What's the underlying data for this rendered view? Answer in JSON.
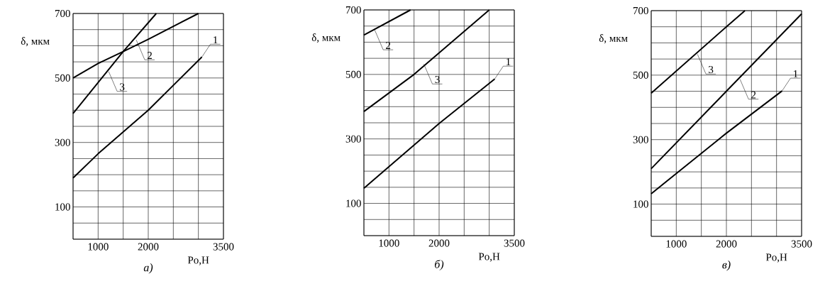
{
  "chart_data": [
    {
      "type": "line",
      "title": "а)",
      "xlabel": "Po,H",
      "ylabel": "δ, мкм",
      "xlim": [
        500,
        3500
      ],
      "ylim": [
        0,
        700
      ],
      "grid": true,
      "xticks": [
        {
          "value": 500,
          "label": null
        },
        1000,
        {
          "value": 1500,
          "label": null
        },
        2000,
        {
          "value": 2500,
          "label": null
        },
        {
          "value": 3000,
          "label": null
        },
        3500
      ],
      "yticks": [
        {
          "value": 0,
          "label": null
        },
        {
          "value": 50,
          "label": null
        },
        100,
        {
          "value": 150,
          "label": null
        },
        {
          "value": 200,
          "label": null
        },
        {
          "value": 250,
          "label": null
        },
        300,
        {
          "value": 350,
          "label": null
        },
        {
          "value": 400,
          "label": null
        },
        {
          "value": 450,
          "label": null
        },
        500,
        {
          "value": 550,
          "label": null
        },
        {
          "value": 600,
          "label": null
        },
        {
          "value": 650,
          "label": null
        },
        700
      ],
      "series": [
        {
          "color": "#000000",
          "x": [
            500,
            1000,
            2000,
            3070
          ],
          "values": [
            190,
            265,
            400,
            565
          ]
        },
        {
          "color": "#000000",
          "x": [
            500,
            1000,
            1500,
            2000,
            3000
          ],
          "values": [
            500,
            545,
            582,
            620,
            700
          ]
        },
        {
          "color": "#000000",
          "x": [
            500,
            1500,
            2160
          ],
          "values": [
            390,
            582,
            700
          ]
        }
      ],
      "annotations": [
        {
          "text": "1",
          "x": 3070,
          "y": 565
        },
        {
          "text": "2",
          "x": 1760,
          "y": 618
        },
        {
          "text": "3",
          "x": 1210,
          "y": 520
        }
      ]
    },
    {
      "type": "line",
      "title": "б)",
      "xlabel": "Po,H",
      "ylabel": "δ, мкм",
      "xlim": [
        500,
        3500
      ],
      "ylim": [
        0,
        700
      ],
      "grid": true,
      "xticks": [
        {
          "value": 500,
          "label": null
        },
        1000,
        {
          "value": 1500,
          "label": null
        },
        2000,
        {
          "value": 2500,
          "label": null
        },
        {
          "value": 3000,
          "label": null
        },
        3500
      ],
      "yticks": [
        {
          "value": 0,
          "label": null
        },
        {
          "value": 50,
          "label": null
        },
        100,
        {
          "value": 150,
          "label": null
        },
        {
          "value": 200,
          "label": null
        },
        {
          "value": 250,
          "label": null
        },
        300,
        {
          "value": 350,
          "label": null
        },
        {
          "value": 400,
          "label": null
        },
        {
          "value": 450,
          "label": null
        },
        500,
        {
          "value": 550,
          "label": null
        },
        {
          "value": 600,
          "label": null
        },
        {
          "value": 650,
          "label": null
        },
        700
      ],
      "series": [
        {
          "color": "#000000",
          "x": [
            500,
            2000,
            3110
          ],
          "values": [
            147,
            348,
            486
          ]
        },
        {
          "color": "#000000",
          "x": [
            500,
            1430
          ],
          "values": [
            622,
            700
          ]
        },
        {
          "color": "#000000",
          "x": [
            500,
            1500,
            3000
          ],
          "values": [
            385,
            500,
            700
          ]
        }
      ],
      "annotations": [
        {
          "text": "1",
          "x": 3110,
          "y": 486
        },
        {
          "text": "2",
          "x": 715,
          "y": 638
        },
        {
          "text": "3",
          "x": 1696,
          "y": 532
        }
      ]
    },
    {
      "type": "line",
      "title": "в)",
      "xlabel": "Po,H",
      "ylabel": "δ, мкм",
      "xlim": [
        500,
        3500
      ],
      "ylim": [
        0,
        700
      ],
      "grid": true,
      "xticks": [
        {
          "value": 500,
          "label": null
        },
        1000,
        {
          "value": 1500,
          "label": null
        },
        2000,
        {
          "value": 2500,
          "label": null
        },
        {
          "value": 3000,
          "label": null
        },
        3500
      ],
      "yticks": [
        {
          "value": 0,
          "label": null
        },
        {
          "value": 50,
          "label": null
        },
        100,
        {
          "value": 150,
          "label": null
        },
        {
          "value": 200,
          "label": null
        },
        {
          "value": 250,
          "label": null
        },
        300,
        {
          "value": 350,
          "label": null
        },
        {
          "value": 400,
          "label": null
        },
        {
          "value": 450,
          "label": null
        },
        500,
        {
          "value": 550,
          "label": null
        },
        {
          "value": 600,
          "label": null
        },
        {
          "value": 650,
          "label": null
        },
        700
      ],
      "series": [
        {
          "color": "#000000",
          "x": [
            500,
            1000,
            2000,
            3110
          ],
          "values": [
            132,
            195,
            320,
            451
          ]
        },
        {
          "color": "#000000",
          "x": [
            500,
            2000,
            3500
          ],
          "values": [
            210,
            450,
            690
          ]
        },
        {
          "color": "#000000",
          "x": [
            500,
            2000,
            2370
          ],
          "values": [
            444,
            650,
            700
          ]
        }
      ],
      "annotations": [
        {
          "text": "1",
          "x": 3110,
          "y": 451
        },
        {
          "text": "2",
          "x": 2272,
          "y": 487
        },
        {
          "text": "3",
          "x": 1422,
          "y": 565
        }
      ]
    }
  ]
}
